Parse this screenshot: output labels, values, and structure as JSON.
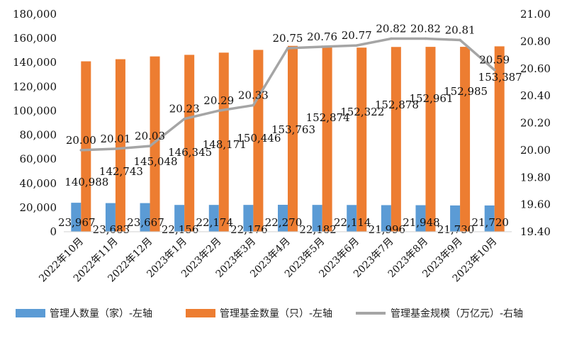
{
  "chart_data": {
    "type": "bar",
    "categories": [
      "2022年10月",
      "2022年11月",
      "2022年12月",
      "2023年1月",
      "2023年2月",
      "2023年3月",
      "2023年4月",
      "2023年5月",
      "2023年6月",
      "2023年7月",
      "2023年8月",
      "2023年9月",
      "2023年10月"
    ],
    "series": [
      {
        "name": "管理人数量（家）-左轴",
        "type": "bar",
        "axis": "left",
        "color": "#5B9BD5",
        "values": [
          23967,
          23683,
          23667,
          22156,
          22174,
          22176,
          22270,
          22182,
          22114,
          21996,
          21948,
          21730,
          21720
        ],
        "labels": [
          "23,967",
          "23,683",
          "23,667",
          "22,156",
          "22,174",
          "22,176",
          "22,270",
          "22,182",
          "22,114",
          "21,996",
          "21,948",
          "21,730",
          "21,720"
        ]
      },
      {
        "name": "管理基金数量（只）-左轴",
        "type": "bar",
        "axis": "left",
        "color": "#ED7D31",
        "values": [
          140988,
          142743,
          145048,
          146345,
          148171,
          150446,
          153763,
          152874,
          152322,
          152878,
          152961,
          152985,
          153387
        ],
        "labels": [
          "140,988",
          "142,743",
          "145,048",
          "146,345",
          "148,171",
          "150,446",
          "153,763",
          "152,874",
          "152,322",
          "152,878",
          "152,961",
          "152,985",
          "153,387"
        ]
      },
      {
        "name": "管理基金规模（万亿元）-右轴",
        "type": "line",
        "axis": "right",
        "color": "#A5A5A5",
        "values": [
          20.0,
          20.01,
          20.03,
          20.23,
          20.29,
          20.33,
          20.75,
          20.76,
          20.77,
          20.82,
          20.82,
          20.81,
          20.59
        ],
        "labels": [
          "20.00",
          "20.01",
          "20.03",
          "20.23",
          "20.29",
          "20.33",
          "20.75",
          "20.76",
          "20.77",
          "20.82",
          "20.82",
          "20.81",
          "20.59"
        ]
      }
    ],
    "left_axis": {
      "ylim": [
        0,
        180000
      ],
      "ticks": [
        0,
        20000,
        40000,
        60000,
        80000,
        100000,
        120000,
        140000,
        160000,
        180000
      ],
      "tick_labels": [
        "0",
        "20,000",
        "40,000",
        "60,000",
        "80,000",
        "100,000",
        "120,000",
        "140,000",
        "160,000",
        "180,000"
      ]
    },
    "right_axis": {
      "ylim": [
        19.4,
        21.0
      ],
      "ticks": [
        19.4,
        19.6,
        19.8,
        20.0,
        20.2,
        20.4,
        20.6,
        20.8,
        21.0
      ],
      "tick_labels": [
        "19.40",
        "19.60",
        "19.80",
        "20.00",
        "20.20",
        "20.40",
        "20.60",
        "20.80",
        "21.00"
      ]
    },
    "grid": false,
    "legend_position": "bottom"
  }
}
